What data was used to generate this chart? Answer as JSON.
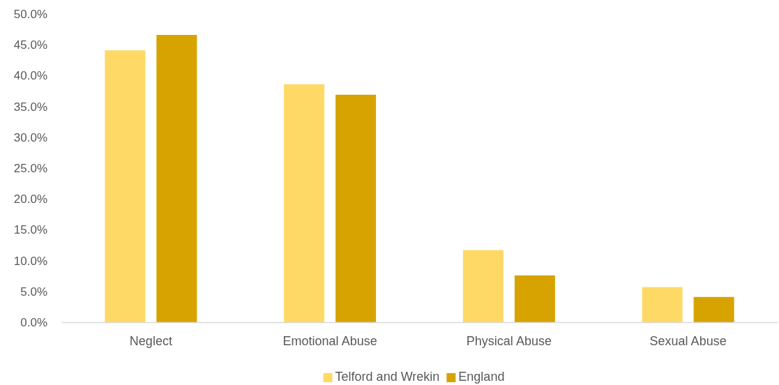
{
  "chart_data": {
    "type": "bar",
    "categories": [
      "Neglect",
      "Emotional Abuse",
      "Physical Abuse",
      "Sexual Abuse"
    ],
    "series": [
      {
        "name": "Telford and Wrekin",
        "color": "#ffd966",
        "values": [
          44.1,
          38.6,
          11.7,
          5.7
        ]
      },
      {
        "name": "England",
        "color": "#d6a300",
        "values": [
          46.6,
          36.9,
          7.6,
          4.1
        ]
      }
    ],
    "ylim": [
      0,
      50
    ],
    "yticks": [
      {
        "value": 0,
        "label": "0.0%"
      },
      {
        "value": 5,
        "label": "5.0%"
      },
      {
        "value": 10,
        "label": "10.0%"
      },
      {
        "value": 15,
        "label": "15.0%"
      },
      {
        "value": 20,
        "label": "20.0%"
      },
      {
        "value": 25,
        "label": "25.0%"
      },
      {
        "value": 30,
        "label": "30.0%"
      },
      {
        "value": 35,
        "label": "35.0%"
      },
      {
        "value": 40,
        "label": "40.0%"
      },
      {
        "value": 45,
        "label": "45.0%"
      },
      {
        "value": 50,
        "label": "50.0%"
      }
    ],
    "grid": false,
    "legend": "bottom"
  }
}
